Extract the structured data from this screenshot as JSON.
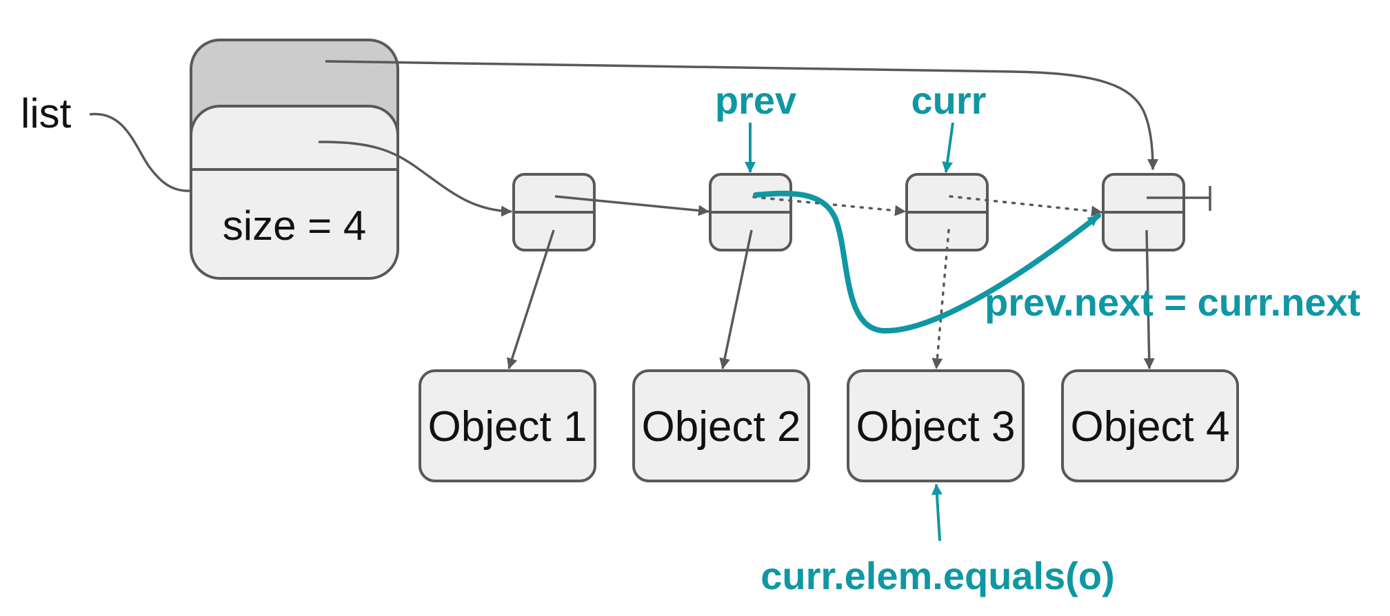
{
  "labels": {
    "list": "list",
    "size": "size = 4",
    "prev": "prev",
    "curr": "curr",
    "relink": "prev.next = curr.next",
    "match": "curr.elem.equals(o)"
  },
  "objects": [
    "Object 1",
    "Object 2",
    "Object 3",
    "Object 4"
  ],
  "colors": {
    "accent": "#0f97a3",
    "stroke": "#595959",
    "node_fill": "#efefef",
    "header_fill": "#cccccc"
  }
}
